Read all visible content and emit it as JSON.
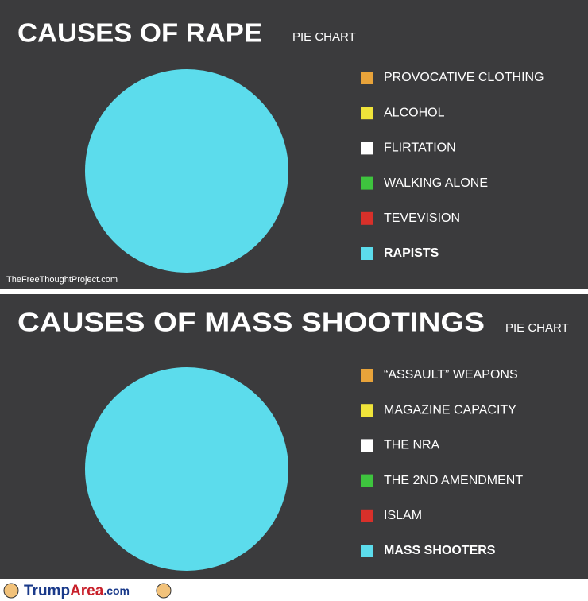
{
  "chart_data": [
    {
      "type": "pie",
      "title": "CAUSES OF RAPE",
      "subtitle": "PIE CHART",
      "source": "TheFreeThoughtProject.com",
      "categories": [
        "PROVOCATIVE CLOTHING",
        "ALCOHOL",
        "FLIRTATION",
        "WALKING ALONE",
        "TEVEVISION",
        "RAPISTS"
      ],
      "values": [
        0,
        0,
        0,
        0,
        0,
        100
      ],
      "colors": [
        "#e8a33a",
        "#f0e43a",
        "#ffffff",
        "#3ec43e",
        "#d8302a",
        "#5cdcec"
      ]
    },
    {
      "type": "pie",
      "title": "CAUSES OF MASS SHOOTINGS",
      "subtitle": "PIE CHART",
      "categories": [
        "“ASSAULT” WEAPONS",
        "MAGAZINE CAPACITY",
        "THE NRA",
        "THE 2ND AMENDMENT",
        "ISLAM",
        "MASS SHOOTERS"
      ],
      "values": [
        0,
        0,
        0,
        0,
        0,
        100
      ],
      "colors": [
        "#e8a33a",
        "#f0e43a",
        "#ffffff",
        "#3ec43e",
        "#d8302a",
        "#5cdcec"
      ]
    }
  ],
  "watermark": [
    "Trump",
    "Area",
    ".com"
  ]
}
